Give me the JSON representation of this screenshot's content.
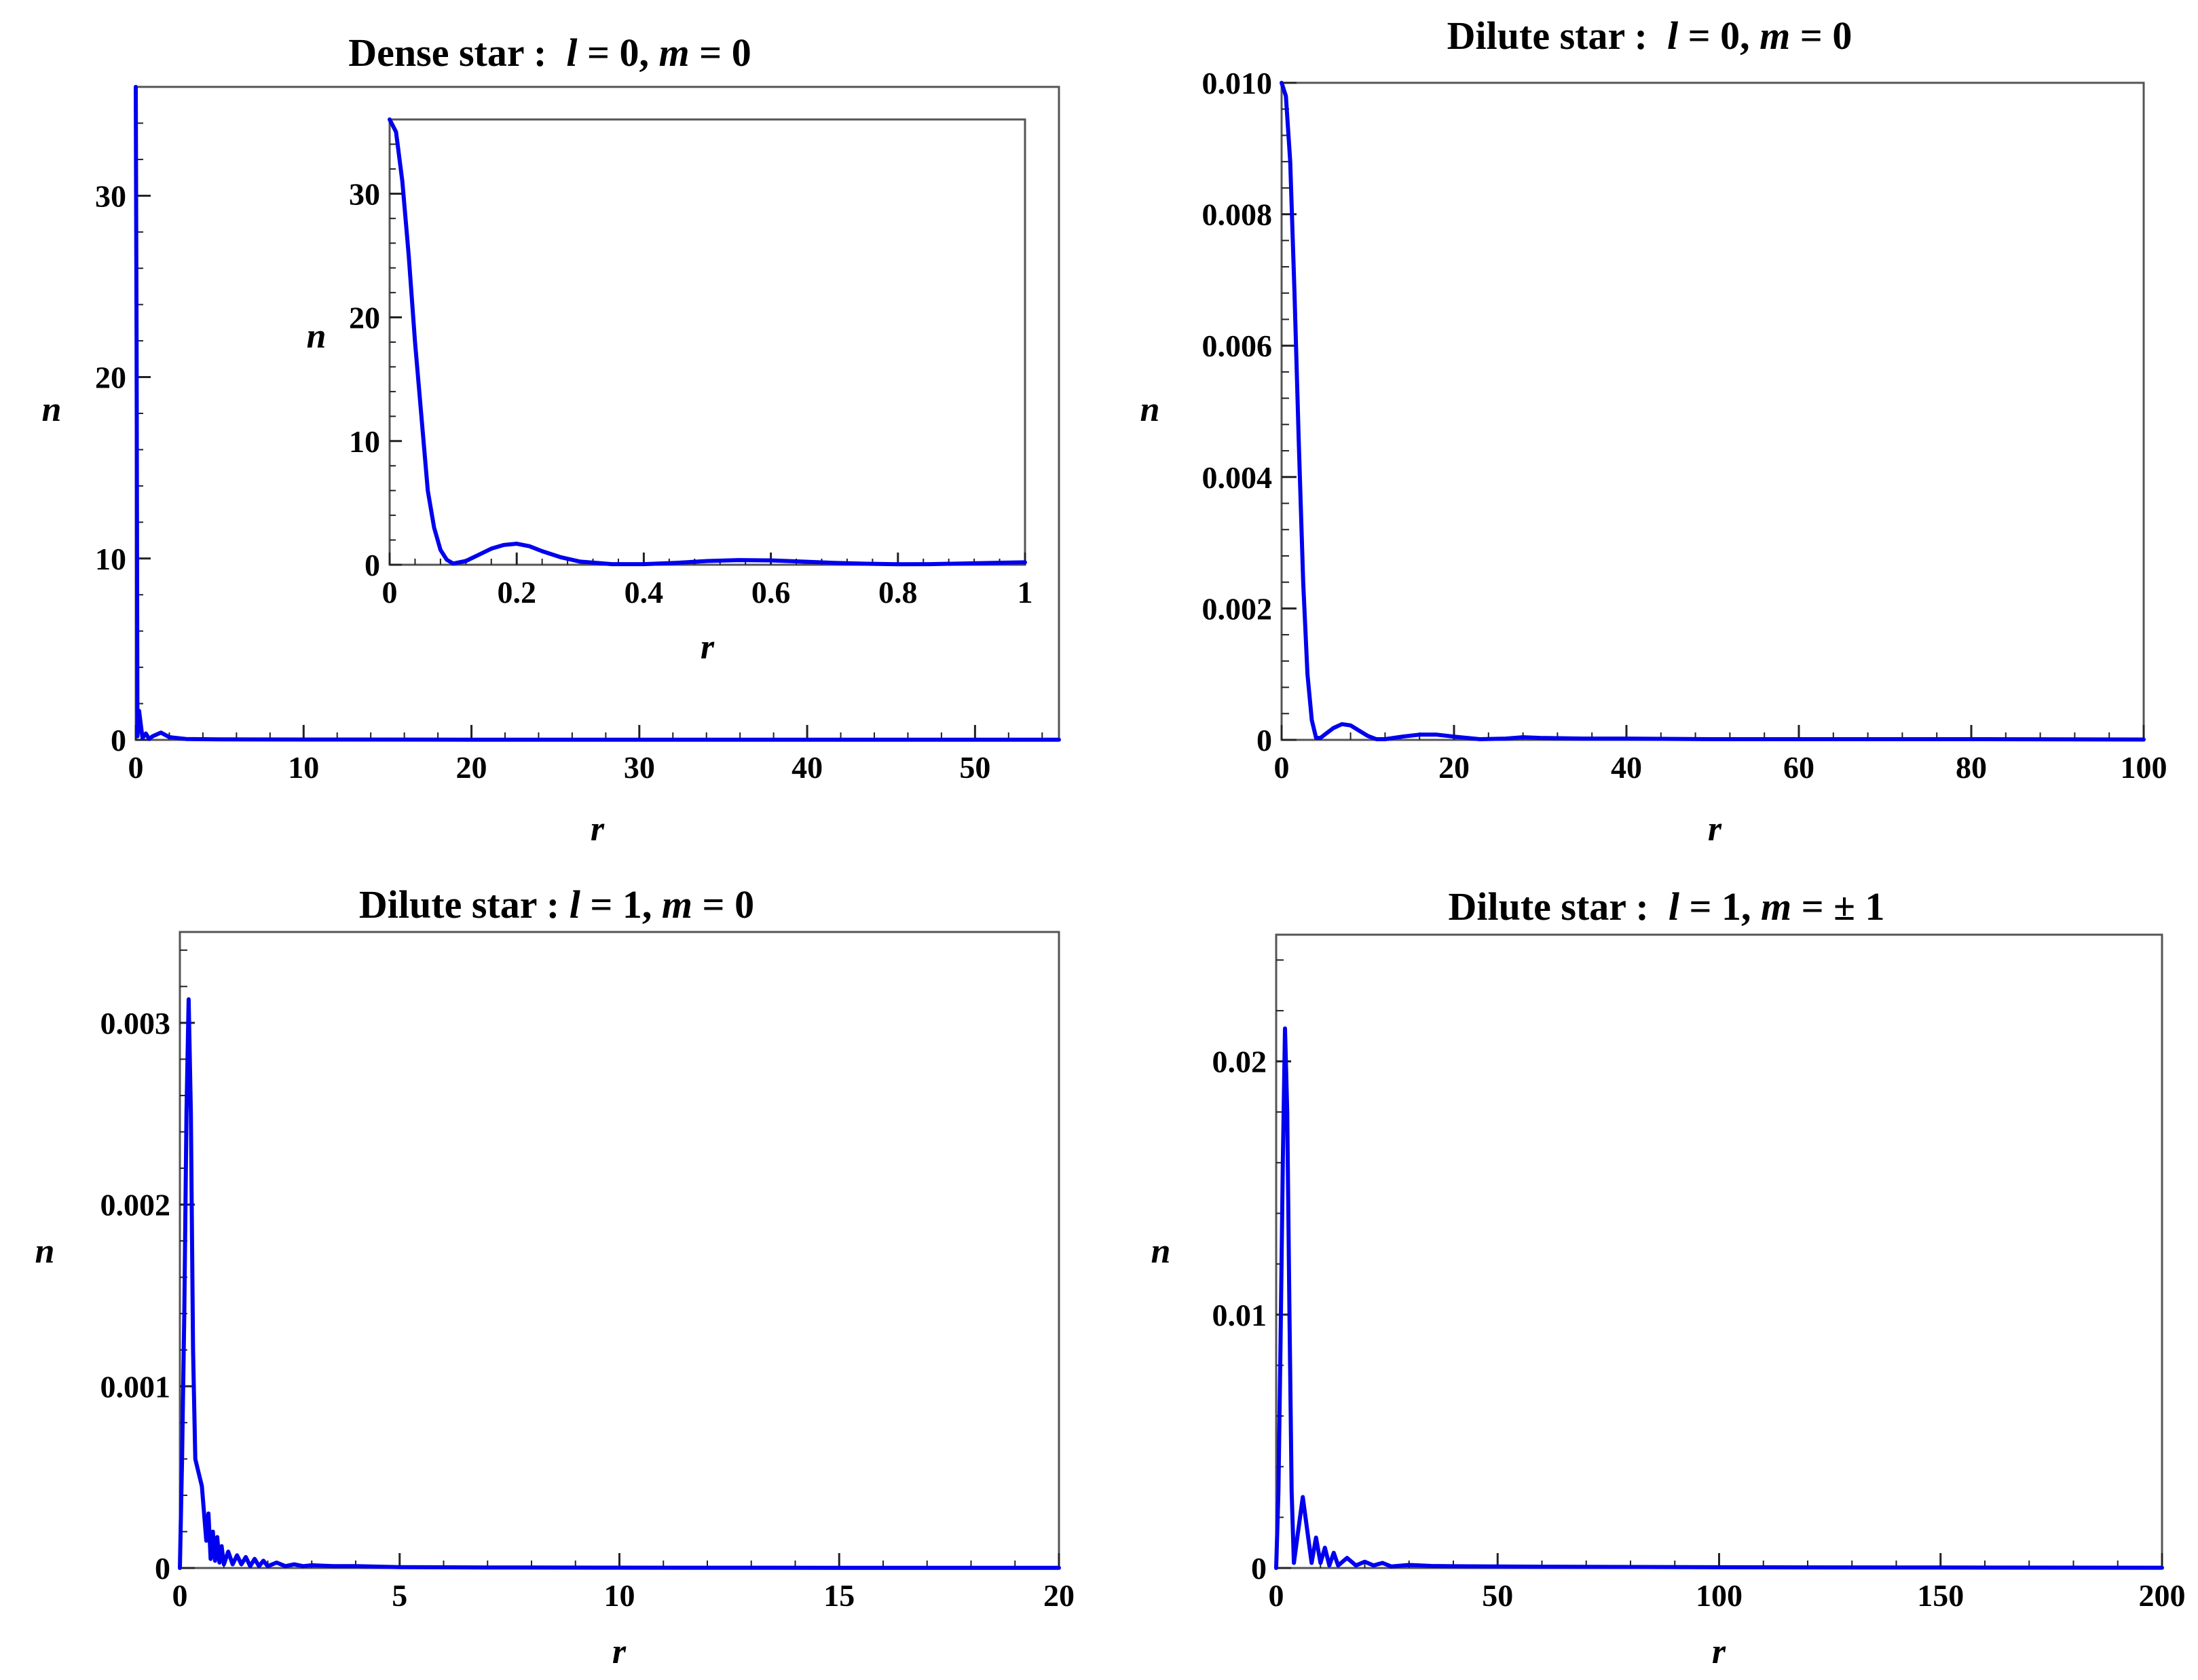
{
  "colors": {
    "series": "#0000ee",
    "frame": "#555555",
    "background": "#ffffff"
  },
  "chart_data": [
    {
      "id": "dense-l0",
      "type": "line",
      "title": {
        "prefix": "Dense star :  ",
        "l_sym": "l",
        "l_eq": " = 0, ",
        "m_sym": "m",
        "m_eq": " = 0"
      },
      "xlabel": "r",
      "ylabel": "n",
      "xlim": [
        0,
        55
      ],
      "ylim": [
        0,
        36
      ],
      "xticks": [
        0,
        10,
        20,
        30,
        40,
        50
      ],
      "xtick_labels": [
        "0",
        "10",
        "20",
        "30",
        "40",
        "50"
      ],
      "yticks": [
        0,
        10,
        20,
        30
      ],
      "ytick_labels": [
        "0",
        "10",
        "20",
        "30"
      ],
      "grid": false,
      "series": [
        {
          "x": [
            0,
            0.05,
            0.1,
            0.2,
            0.4,
            0.6,
            0.8,
            1,
            1.5,
            2,
            3,
            5,
            10,
            20,
            30,
            40,
            55
          ],
          "y": [
            36,
            22,
            0.2,
            1.6,
            0.1,
            0.35,
            0.05,
            0.2,
            0.4,
            0.15,
            0.05,
            0.03,
            0.02,
            0.01,
            0.01,
            0.01,
            0.01
          ]
        }
      ],
      "inset": {
        "xlabel": "r",
        "ylabel": "n",
        "xlim": [
          0,
          1
        ],
        "ylim": [
          0,
          36
        ],
        "xticks": [
          0,
          0.2,
          0.4,
          0.6,
          0.8,
          1
        ],
        "xtick_labels": [
          "0",
          "0.2",
          "0.4",
          "0.6",
          "0.8",
          "1"
        ],
        "yticks": [
          0,
          10,
          20,
          30
        ],
        "ytick_labels": [
          "0",
          "10",
          "20",
          "30"
        ],
        "series": [
          {
            "x": [
              0,
              0.01,
              0.02,
              0.03,
              0.04,
              0.05,
              0.06,
              0.07,
              0.08,
              0.09,
              0.1,
              0.12,
              0.14,
              0.16,
              0.18,
              0.2,
              0.22,
              0.24,
              0.27,
              0.3,
              0.35,
              0.4,
              0.45,
              0.5,
              0.55,
              0.6,
              0.65,
              0.7,
              0.75,
              0.8,
              0.85,
              0.9,
              0.95,
              1.0
            ],
            "y": [
              36,
              35,
              31,
              25,
              18,
              12,
              6,
              3,
              1.2,
              0.4,
              0.1,
              0.3,
              0.8,
              1.3,
              1.6,
              1.7,
              1.5,
              1.1,
              0.6,
              0.25,
              0.05,
              0.05,
              0.15,
              0.3,
              0.38,
              0.35,
              0.25,
              0.15,
              0.08,
              0.04,
              0.05,
              0.1,
              0.15,
              0.2
            ]
          }
        ]
      }
    },
    {
      "id": "dilute-l0",
      "type": "line",
      "title": {
        "prefix": "Dilute star :  ",
        "l_sym": "l",
        "l_eq": " = 0, ",
        "m_sym": "m",
        "m_eq": " = 0"
      },
      "xlabel": "r",
      "ylabel": "n",
      "xlim": [
        0,
        100
      ],
      "ylim": [
        0,
        0.01
      ],
      "xticks": [
        0,
        20,
        40,
        60,
        80,
        100
      ],
      "xtick_labels": [
        "0",
        "20",
        "40",
        "60",
        "80",
        "100"
      ],
      "yticks": [
        0,
        0.002,
        0.004,
        0.006,
        0.008,
        0.01
      ],
      "ytick_labels": [
        "0",
        "0.002",
        "0.004",
        "0.006",
        "0.008",
        "0.010"
      ],
      "grid": false,
      "series": [
        {
          "x": [
            0,
            0.5,
            1,
            1.5,
            2,
            2.5,
            3,
            3.5,
            4,
            4.5,
            5,
            6,
            7,
            8,
            9,
            10,
            11,
            12,
            14,
            16,
            18,
            20,
            23,
            26,
            28,
            30,
            35,
            40,
            50,
            60,
            80,
            100
          ],
          "y": [
            0.01,
            0.0098,
            0.0088,
            0.0068,
            0.0045,
            0.0024,
            0.001,
            0.0003,
            3e-05,
            3e-05,
            8e-05,
            0.00018,
            0.00024,
            0.00022,
            0.00014,
            6e-05,
            1e-05,
            1e-05,
            5e-05,
            8e-05,
            8e-05,
            5e-05,
            1e-05,
            2e-05,
            4e-05,
            3e-05,
            2e-05,
            2e-05,
            1e-05,
            1e-05,
            1e-05,
            5e-06
          ]
        }
      ]
    },
    {
      "id": "dilute-l1-m0",
      "type": "line",
      "title": {
        "prefix": "Dilute star : ",
        "l_sym": "l",
        "l_eq": " = 1, ",
        "m_sym": "m",
        "m_eq": " = 0"
      },
      "xlabel": "r",
      "ylabel": "n",
      "xlim": [
        0,
        20
      ],
      "ylim": [
        0,
        0.0035
      ],
      "xticks": [
        0,
        5,
        10,
        15,
        20
      ],
      "xtick_labels": [
        "0",
        "5",
        "10",
        "15",
        "20"
      ],
      "yticks": [
        0,
        0.001,
        0.002,
        0.003
      ],
      "ytick_labels": [
        "0",
        "0.001",
        "0.002",
        "0.003"
      ],
      "grid": false,
      "series": [
        {
          "x": [
            0,
            0.05,
            0.1,
            0.15,
            0.2,
            0.25,
            0.3,
            0.35,
            0.4,
            0.5,
            0.6,
            0.65,
            0.7,
            0.75,
            0.8,
            0.85,
            0.9,
            0.95,
            1.0,
            1.1,
            1.2,
            1.3,
            1.4,
            1.5,
            1.6,
            1.7,
            1.8,
            1.9,
            2.0,
            2.2,
            2.4,
            2.6,
            2.8,
            3.0,
            3.5,
            4,
            5,
            7,
            10,
            15,
            20
          ],
          "y": [
            0,
            0.0006,
            0.0014,
            0.0025,
            0.00313,
            0.0025,
            0.0012,
            0.0006,
            0.00055,
            0.00045,
            0.00015,
            0.0003,
            5e-05,
            0.0002,
            4e-05,
            0.00017,
            3e-05,
            0.00012,
            2e-05,
            9e-05,
            2e-05,
            7e-05,
            2e-05,
            6e-05,
            1e-05,
            5e-05,
            1e-05,
            4e-05,
            1e-05,
            3e-05,
            1e-05,
            2e-05,
            1e-05,
            1.5e-05,
            1e-05,
            1e-05,
            5e-06,
            3e-06,
            2e-06,
            1e-06,
            1e-06
          ]
        }
      ]
    },
    {
      "id": "dilute-l1-m1",
      "type": "line",
      "title": {
        "prefix": "Dilute star :  ",
        "l_sym": "l",
        "l_eq": " = 1, ",
        "m_sym": "m",
        "m_eq": " = ± 1"
      },
      "xlabel": "r",
      "ylabel": "n",
      "xlim": [
        0,
        200
      ],
      "ylim": [
        0,
        0.025
      ],
      "xticks": [
        0,
        50,
        100,
        150,
        200
      ],
      "xtick_labels": [
        "0",
        "50",
        "100",
        "150",
        "200"
      ],
      "yticks": [
        0,
        0.01,
        0.02
      ],
      "ytick_labels": [
        "0",
        "0.01",
        "0.02"
      ],
      "grid": false,
      "series": [
        {
          "x": [
            0,
            0.5,
            1,
            1.5,
            2,
            2.5,
            3,
            3.5,
            4,
            5,
            6,
            7,
            8,
            9,
            10,
            11,
            12,
            13,
            14,
            16,
            18,
            20,
            22,
            24,
            26,
            30,
            35,
            40,
            50,
            60,
            80,
            100,
            150,
            200
          ],
          "y": [
            0,
            0.003,
            0.009,
            0.016,
            0.0213,
            0.018,
            0.01,
            0.003,
            0.0002,
            0.0015,
            0.0028,
            0.0015,
            0.0002,
            0.0012,
            0.0002,
            0.0008,
            0.0001,
            0.0006,
            0.0001,
            0.0004,
            0.0001,
            0.00025,
            0.0001,
            0.0002,
            6e-05,
            0.00012,
            8e-05,
            7e-05,
            6e-05,
            5e-05,
            4e-05,
            3e-05,
            2e-05,
            1e-05
          ]
        }
      ]
    }
  ]
}
